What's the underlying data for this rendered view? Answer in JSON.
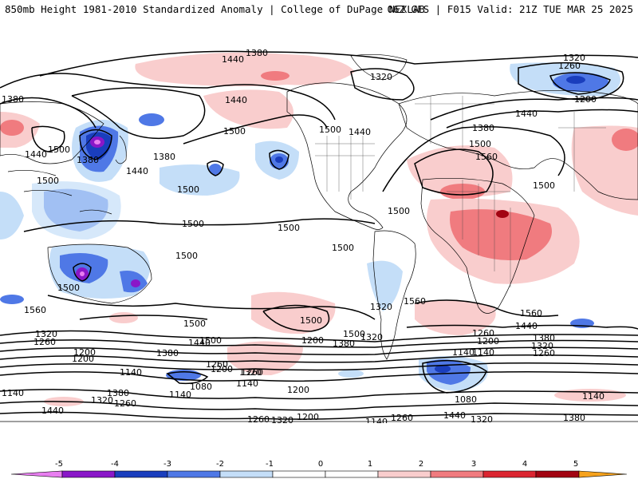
{
  "header": {
    "title": "850mb Height 1981-2010 Standardized Anomaly | College of DuPage NEXLAB",
    "run": "06Z GFS | F015 Valid: 21Z TUE MAR 25 2025"
  },
  "contour_labels": [
    {
      "id": "c1",
      "text": "1380"
    },
    {
      "id": "c2",
      "text": "1440"
    },
    {
      "id": "c3",
      "text": "1320"
    },
    {
      "id": "c4",
      "text": "1260"
    },
    {
      "id": "c5",
      "text": "1200"
    },
    {
      "id": "c6",
      "text": "1320"
    },
    {
      "id": "c7",
      "text": "1380"
    },
    {
      "id": "c8",
      "text": "1440"
    },
    {
      "id": "c9",
      "text": "1380"
    },
    {
      "id": "c10",
      "text": "1440"
    },
    {
      "id": "c11",
      "text": "1500"
    },
    {
      "id": "c12",
      "text": "1500"
    },
    {
      "id": "c13",
      "text": "1500"
    },
    {
      "id": "c14",
      "text": "1440"
    },
    {
      "id": "c15",
      "text": "1380"
    },
    {
      "id": "c16",
      "text": "1440"
    },
    {
      "id": "c17",
      "text": "1380"
    },
    {
      "id": "c18",
      "text": "1500"
    },
    {
      "id": "c19",
      "text": "1440"
    },
    {
      "id": "c20",
      "text": "1500"
    },
    {
      "id": "c21",
      "text": "1560"
    },
    {
      "id": "c22",
      "text": "1500"
    },
    {
      "id": "c23",
      "text": "1500"
    },
    {
      "id": "c24",
      "text": "1500"
    },
    {
      "id": "c25",
      "text": "1500"
    },
    {
      "id": "c26",
      "text": "1500"
    },
    {
      "id": "c27",
      "text": "1500"
    },
    {
      "id": "c28",
      "text": "1500"
    },
    {
      "id": "c29",
      "text": "1500"
    },
    {
      "id": "c30",
      "text": "1560"
    },
    {
      "id": "c31",
      "text": "1500"
    },
    {
      "id": "c32",
      "text": "1560"
    },
    {
      "id": "c33",
      "text": "1560"
    },
    {
      "id": "c34",
      "text": "1500"
    },
    {
      "id": "c35",
      "text": "1440"
    },
    {
      "id": "c36",
      "text": "1380"
    },
    {
      "id": "c37",
      "text": "1320"
    },
    {
      "id": "c38",
      "text": "1260"
    },
    {
      "id": "c39",
      "text": "1200"
    },
    {
      "id": "c40",
      "text": "1140"
    },
    {
      "id": "c41",
      "text": "1080"
    },
    {
      "id": "c42",
      "text": "1140"
    },
    {
      "id": "c43",
      "text": "1200"
    },
    {
      "id": "c44",
      "text": "1260"
    },
    {
      "id": "c45",
      "text": "1320"
    },
    {
      "id": "c46",
      "text": "1380"
    },
    {
      "id": "c47",
      "text": "1440"
    },
    {
      "id": "c48",
      "text": "1500"
    },
    {
      "id": "c49",
      "text": "1200"
    },
    {
      "id": "c50",
      "text": "1140"
    },
    {
      "id": "c51",
      "text": "1080"
    },
    {
      "id": "c52",
      "text": "1140"
    },
    {
      "id": "c53",
      "text": "1320"
    },
    {
      "id": "c54",
      "text": "1260"
    },
    {
      "id": "c55",
      "text": "1200"
    },
    {
      "id": "c56",
      "text": "1140"
    },
    {
      "id": "c57",
      "text": "1320"
    },
    {
      "id": "c58",
      "text": "1260"
    },
    {
      "id": "c59",
      "text": "1380"
    },
    {
      "id": "c60",
      "text": "1440"
    },
    {
      "id": "c61",
      "text": "1500"
    },
    {
      "id": "c62",
      "text": "1320"
    },
    {
      "id": "c63",
      "text": "1260"
    },
    {
      "id": "c64",
      "text": "1200"
    },
    {
      "id": "c65",
      "text": "1140"
    },
    {
      "id": "c66",
      "text": "1200"
    },
    {
      "id": "c67",
      "text": "1260"
    },
    {
      "id": "c68",
      "text": "1320"
    },
    {
      "id": "c69",
      "text": "1140"
    },
    {
      "id": "c70",
      "text": "1200"
    },
    {
      "id": "c71",
      "text": "1260"
    },
    {
      "id": "c72",
      "text": "1320"
    },
    {
      "id": "c73",
      "text": "1380"
    },
    {
      "id": "c74",
      "text": "1140"
    },
    {
      "id": "c75",
      "text": "1440"
    },
    {
      "id": "c76",
      "text": "1380"
    },
    {
      "id": "c77",
      "text": "1320"
    },
    {
      "id": "c78",
      "text": "1260"
    }
  ],
  "colorbar": {
    "ticks": [
      "-5",
      "-4",
      "-3",
      "-2",
      "-1",
      "0",
      "1",
      "2",
      "3",
      "4",
      "5"
    ],
    "colors": {
      "neg5": "#e87ef0",
      "neg4": "#8a17c8",
      "neg3": "#1a3ebd",
      "neg2": "#4f78e6",
      "neg1": "#c4def8",
      "zero": "#ffffff",
      "pos1": "#f9cdcd",
      "pos2": "#f07b7f",
      "pos3": "#db2531",
      "pos4": "#a20412",
      "pos5": "#f6a21c"
    }
  },
  "colors": {
    "land_outline": "#000000",
    "contour": "#000000"
  }
}
